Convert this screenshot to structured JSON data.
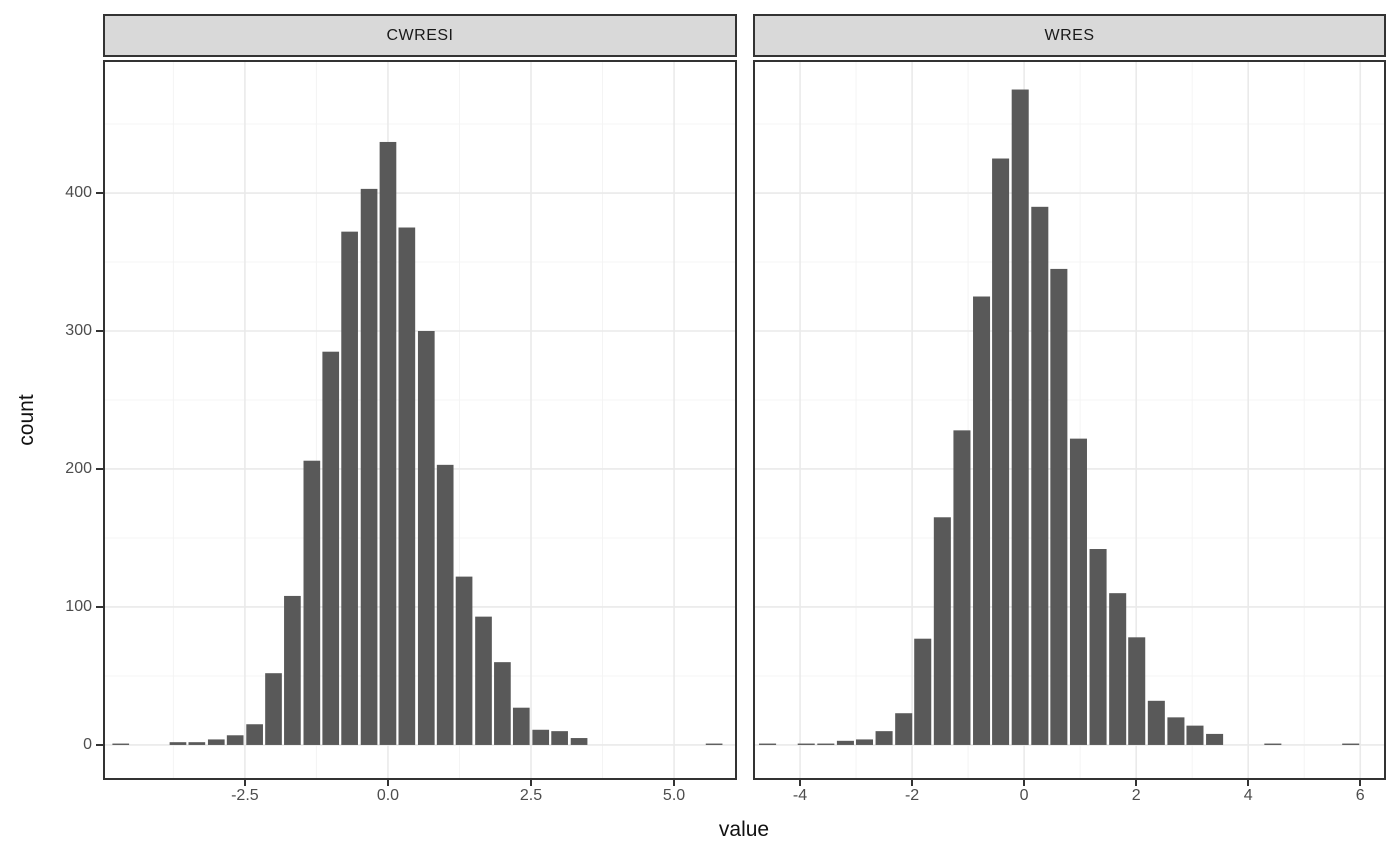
{
  "figure": {
    "x_axis_title": "value",
    "y_axis_title": "count",
    "y_ticks": [
      {
        "value": 0,
        "label": "0"
      },
      {
        "value": 100,
        "label": "100"
      },
      {
        "value": 200,
        "label": "200"
      },
      {
        "value": 300,
        "label": "300"
      },
      {
        "value": 400,
        "label": "400"
      }
    ]
  },
  "colors": {
    "bar_fill": "#595959",
    "strip_bg": "#d9d9d9",
    "panel_bg": "#ffffff",
    "panel_border": "#333333",
    "grid_major": "#eaeaea",
    "grid_minor": "#f4f4f4",
    "axis_text": "#4d4d4d",
    "title_text": "#111111"
  },
  "chart_data": [
    {
      "type": "bar",
      "subtype": "histogram",
      "facet_label": "CWRESI",
      "xlabel": "value",
      "ylabel": "count",
      "xlim": [
        -4.98,
        6.1
      ],
      "ylim": [
        -25.4,
        496.4
      ],
      "binwidth": 0.3335,
      "x_ticks": [
        {
          "value": -2.5,
          "label": "-2.5"
        },
        {
          "value": 0.0,
          "label": "0.0"
        },
        {
          "value": 2.5,
          "label": "2.5"
        },
        {
          "value": 5.0,
          "label": "5.0"
        }
      ],
      "bars": [
        [
          -4.67,
          1
        ],
        [
          -3.67,
          2
        ],
        [
          -3.34,
          2
        ],
        [
          -3.0,
          4
        ],
        [
          -2.67,
          7
        ],
        [
          -2.33,
          15
        ],
        [
          -2.0,
          52
        ],
        [
          -1.67,
          108
        ],
        [
          -1.33,
          206
        ],
        [
          -1.0,
          285
        ],
        [
          -0.67,
          372
        ],
        [
          -0.33,
          403
        ],
        [
          0.0,
          437
        ],
        [
          0.33,
          375
        ],
        [
          0.67,
          300
        ],
        [
          1.0,
          203
        ],
        [
          1.33,
          122
        ],
        [
          1.67,
          93
        ],
        [
          2.0,
          60
        ],
        [
          2.33,
          27
        ],
        [
          2.67,
          11
        ],
        [
          3.0,
          10
        ],
        [
          3.34,
          5
        ],
        [
          5.7,
          1
        ]
      ]
    },
    {
      "type": "bar",
      "subtype": "histogram",
      "facet_label": "WRES",
      "xlabel": "value",
      "ylabel": "count",
      "xlim": [
        -4.84,
        6.46
      ],
      "ylim": [
        -25.4,
        496.4
      ],
      "binwidth": 0.347,
      "x_ticks": [
        {
          "value": -4,
          "label": "-4"
        },
        {
          "value": -2,
          "label": "-2"
        },
        {
          "value": 0,
          "label": "0"
        },
        {
          "value": 2,
          "label": "2"
        },
        {
          "value": 4,
          "label": "4"
        },
        {
          "value": 6,
          "label": "6"
        }
      ],
      "bars": [
        [
          -4.58,
          1
        ],
        [
          -3.89,
          1
        ],
        [
          -3.54,
          1
        ],
        [
          -3.19,
          3
        ],
        [
          -2.85,
          4
        ],
        [
          -2.5,
          10
        ],
        [
          -2.15,
          23
        ],
        [
          -1.81,
          77
        ],
        [
          -1.46,
          165
        ],
        [
          -1.11,
          228
        ],
        [
          -0.76,
          325
        ],
        [
          -0.42,
          425
        ],
        [
          -0.07,
          475
        ],
        [
          0.28,
          390
        ],
        [
          0.62,
          345
        ],
        [
          0.97,
          222
        ],
        [
          1.32,
          142
        ],
        [
          1.67,
          110
        ],
        [
          2.01,
          78
        ],
        [
          2.36,
          32
        ],
        [
          2.71,
          20
        ],
        [
          3.05,
          14
        ],
        [
          3.4,
          8
        ],
        [
          4.44,
          1
        ],
        [
          5.83,
          1
        ]
      ]
    }
  ]
}
